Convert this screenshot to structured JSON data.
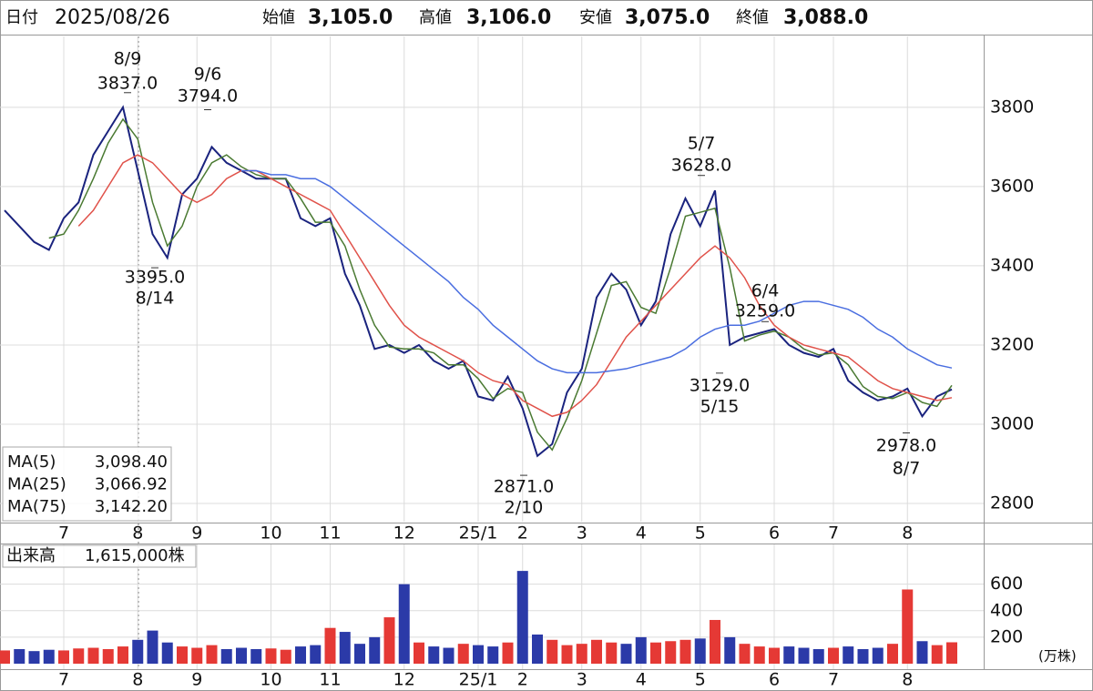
{
  "header": {
    "date_label": "日付",
    "date": "2025/08/26",
    "fields": [
      {
        "label": "始値",
        "value": "3,105.0",
        "color": "#111111"
      },
      {
        "label": "高値",
        "value": "3,106.0",
        "color": "#e53935"
      },
      {
        "label": "安値",
        "value": "3,075.0",
        "color": "#2e7d32"
      },
      {
        "label": "終値",
        "value": "3,088.0",
        "color": "#111111"
      }
    ]
  },
  "chart_data": [
    {
      "type": "line",
      "categories": [
        null,
        null,
        null,
        null,
        "7",
        null,
        null,
        null,
        null,
        "8",
        null,
        null,
        null,
        "9",
        null,
        null,
        null,
        null,
        "10",
        null,
        null,
        null,
        "11",
        null,
        null,
        null,
        null,
        "12",
        null,
        null,
        null,
        null,
        "25/1",
        null,
        null,
        "2",
        null,
        null,
        null,
        "3",
        null,
        null,
        null,
        "4",
        null,
        null,
        null,
        "5",
        null,
        null,
        null,
        null,
        "6",
        null,
        null,
        null,
        "7",
        null,
        null,
        null,
        null,
        "8",
        null,
        null,
        null
      ],
      "series": [
        {
          "color": "#1a237e",
          "values": [
            3540,
            3500,
            3460,
            3440,
            3520,
            3560,
            3680,
            3740,
            3800,
            3640,
            3480,
            3420,
            3580,
            3620,
            3700,
            3660,
            3640,
            3620,
            3620,
            3620,
            3520,
            3500,
            3520,
            3380,
            3300,
            3190,
            3200,
            3180,
            3200,
            3160,
            3140,
            3160,
            3070,
            3060,
            3120,
            3040,
            2920,
            2950,
            3080,
            3140,
            3320,
            3380,
            3340,
            3250,
            3310,
            3480,
            3570,
            3500,
            3590,
            3200,
            3220,
            3230,
            3240,
            3200,
            3180,
            3170,
            3190,
            3110,
            3080,
            3060,
            3070,
            3090,
            3020,
            3070,
            3088
          ]
        },
        {
          "name": "MA(5)",
          "latest_label": "3,098.40",
          "color": "#4a7a32",
          "values": [
            null,
            null,
            null,
            3470,
            3480,
            3540,
            3620,
            3710,
            3770,
            3720,
            3560,
            3450,
            3500,
            3600,
            3660,
            3680,
            3650,
            3630,
            3620,
            3620,
            3570,
            3510,
            3510,
            3450,
            3340,
            3250,
            3195,
            3190,
            3190,
            3180,
            3150,
            3150,
            3115,
            3065,
            3090,
            3080,
            2980,
            2935,
            3015,
            3110,
            3230,
            3350,
            3360,
            3295,
            3280,
            3395,
            3525,
            3535,
            3545,
            3395,
            3210,
            3225,
            3235,
            3220,
            3190,
            3175,
            3180,
            3150,
            3095,
            3070,
            3065,
            3080,
            3055,
            3045,
            3098
          ]
        },
        {
          "name": "MA(25)",
          "latest_label": "3,066.92",
          "color": "#e0524a",
          "values": [
            null,
            null,
            null,
            null,
            null,
            3500,
            3540,
            3600,
            3660,
            3680,
            3660,
            3620,
            3580,
            3560,
            3580,
            3620,
            3640,
            3640,
            3620,
            3600,
            3580,
            3560,
            3540,
            3480,
            3420,
            3360,
            3300,
            3250,
            3220,
            3200,
            3180,
            3160,
            3130,
            3110,
            3100,
            3060,
            3040,
            3020,
            3030,
            3060,
            3100,
            3160,
            3220,
            3260,
            3300,
            3340,
            3380,
            3420,
            3450,
            3420,
            3370,
            3300,
            3250,
            3220,
            3200,
            3190,
            3180,
            3170,
            3140,
            3110,
            3090,
            3080,
            3070,
            3060,
            3067
          ]
        },
        {
          "name": "MA(75)",
          "latest_label": "3,142.20",
          "color": "#4a6ee0",
          "values": [
            null,
            null,
            null,
            null,
            null,
            null,
            null,
            null,
            null,
            null,
            null,
            null,
            null,
            null,
            null,
            null,
            3640,
            3640,
            3630,
            3630,
            3620,
            3620,
            3600,
            3570,
            3540,
            3510,
            3480,
            3450,
            3420,
            3390,
            3360,
            3320,
            3290,
            3250,
            3220,
            3190,
            3160,
            3140,
            3130,
            3130,
            3130,
            3135,
            3140,
            3150,
            3160,
            3170,
            3190,
            3220,
            3240,
            3250,
            3250,
            3260,
            3280,
            3300,
            3310,
            3310,
            3300,
            3290,
            3270,
            3240,
            3220,
            3190,
            3170,
            3150,
            3142
          ]
        }
      ],
      "ylim": [
        2754,
        3979
      ],
      "yticks": [
        2800,
        3000,
        3200,
        3400,
        3600,
        3800
      ],
      "grid": true,
      "annotations": [
        {
          "date": "8/9",
          "value": 3837,
          "value_label": "3837.0"
        },
        {
          "date": "9/6",
          "value": 3794,
          "value_label": "3794.0"
        },
        {
          "date": "8/14",
          "value": 3395,
          "value_label": "3395.0"
        },
        {
          "date": "2/10",
          "value": 2871,
          "value_label": "2871.0"
        },
        {
          "date": "5/7",
          "value": 3628,
          "value_label": "3628.0"
        },
        {
          "date": "5/15",
          "value": 3129,
          "value_label": "3129.0"
        },
        {
          "date": "6/4",
          "value": 3259,
          "value_label": "3259.0"
        },
        {
          "date": "8/7",
          "value": 2978,
          "value_label": "2978.0"
        }
      ]
    },
    {
      "type": "bar",
      "title": "出来高",
      "latest_label": "1,615,000株",
      "unit": "(万株)",
      "categories": [
        null,
        null,
        null,
        null,
        "7",
        null,
        null,
        null,
        null,
        "8",
        null,
        null,
        null,
        "9",
        null,
        null,
        null,
        null,
        "10",
        null,
        null,
        null,
        "11",
        null,
        null,
        null,
        null,
        "12",
        null,
        null,
        null,
        null,
        "25/1",
        null,
        null,
        "2",
        null,
        null,
        null,
        "3",
        null,
        null,
        null,
        "4",
        null,
        null,
        null,
        "5",
        null,
        null,
        null,
        null,
        "6",
        null,
        null,
        null,
        "7",
        null,
        null,
        null,
        null,
        "8",
        null,
        null,
        null
      ],
      "values": [
        100,
        110,
        95,
        105,
        100,
        115,
        120,
        110,
        130,
        180,
        250,
        160,
        130,
        120,
        140,
        110,
        120,
        110,
        115,
        105,
        130,
        140,
        270,
        240,
        150,
        200,
        350,
        600,
        160,
        130,
        120,
        150,
        140,
        130,
        160,
        700,
        220,
        180,
        140,
        150,
        180,
        160,
        150,
        200,
        160,
        170,
        180,
        190,
        330,
        200,
        150,
        130,
        120,
        130,
        120,
        110,
        120,
        130,
        110,
        120,
        150,
        560,
        170,
        140,
        161.5
      ],
      "up_color": "#e53935",
      "down_color": "#2b3aa8",
      "ylim": [
        0,
        900
      ],
      "yticks": [
        200,
        400,
        600
      ],
      "grid": true
    }
  ]
}
